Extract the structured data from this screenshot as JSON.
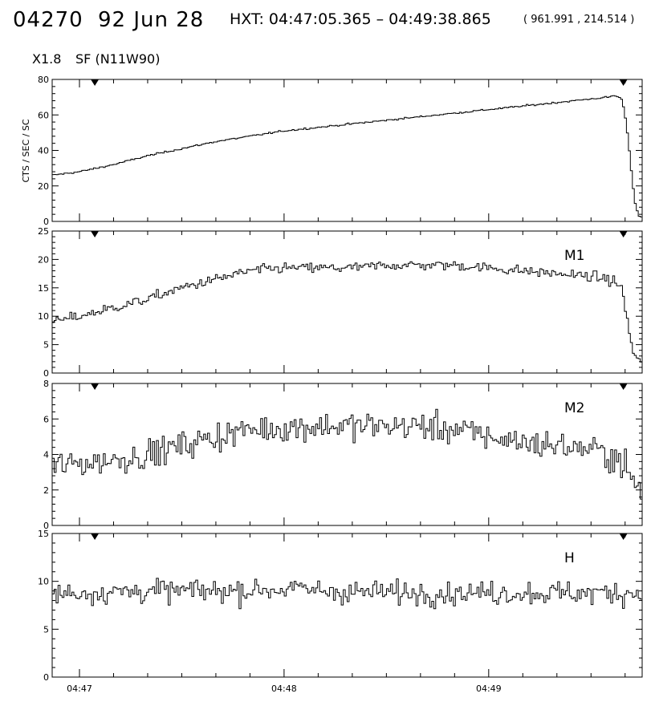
{
  "header": {
    "event_id": "04270",
    "date": "92 Jun 28",
    "hxt_range": "HXT: 04:47:05.365 – 04:49:38.865",
    "coords": "( 961.991 , 214.514 )",
    "flare_class": "X1.8",
    "location": "SF (N11W90)"
  },
  "chart_data": {
    "type": "line",
    "title": "",
    "xlabel": "",
    "ylabel": "CTS / SEC / SC",
    "x_ticks": [
      "04:47",
      "04:48",
      "04:49"
    ],
    "x_range_seconds_after_0447": [
      -8,
      165
    ],
    "markers_seconds_after_0447": [
      4.5,
      159.5
    ],
    "panels": [
      {
        "name": "",
        "ylim": [
          0,
          80
        ],
        "yticks": [
          "0",
          "20",
          "40",
          "60",
          "80"
        ],
        "series": [
          {
            "x": [
              -8,
              0,
              10,
              20,
              30,
              40,
              50,
              60,
              70,
              80,
              90,
              100,
              110,
              120,
              130,
              140,
              150,
              155,
              157,
              159,
              160,
              161,
              162,
              163,
              164,
              165
            ],
            "values": [
              26,
              28,
              32,
              37,
              41,
              45,
              48,
              51,
              53,
              55,
              57,
              59,
              61,
              63,
              65,
              67,
              69,
              70,
              71,
              69,
              60,
              45,
              25,
              10,
              3,
              2
            ]
          }
        ]
      },
      {
        "name": "M1",
        "ylim": [
          0,
          25
        ],
        "yticks": [
          "0",
          "5",
          "10",
          "15",
          "20",
          "25"
        ],
        "series": [
          {
            "x": [
              -8,
              0,
              10,
              20,
              30,
              40,
              50,
              60,
              70,
              80,
              90,
              100,
              110,
              120,
              130,
              140,
              150,
              155,
              157,
              159,
              160,
              161,
              162,
              163,
              164,
              165
            ],
            "values": [
              9,
              10,
              11.5,
              13,
              15,
              16.5,
              18,
              18.5,
              18.5,
              18.5,
              19,
              19,
              19,
              18.5,
              18,
              17.5,
              17,
              16.5,
              16,
              15,
              12,
              8,
              4,
              3,
              2.5,
              2
            ]
          }
        ]
      },
      {
        "name": "M2",
        "ylim": [
          0,
          8
        ],
        "yticks": [
          "0",
          "2",
          "4",
          "6",
          "8"
        ],
        "series": [
          {
            "x": [
              -8,
              0,
              10,
              20,
              30,
              40,
              50,
              60,
              70,
              80,
              90,
              100,
              110,
              120,
              130,
              140,
              150,
              155,
              157,
              159,
              160,
              161,
              162,
              163,
              164,
              165
            ],
            "values": [
              3.3,
              3.5,
              3.7,
              4.0,
              4.5,
              5.0,
              5.4,
              5.5,
              5.6,
              5.6,
              5.6,
              5.6,
              5.4,
              5.0,
              4.7,
              4.5,
              4.3,
              4.0,
              3.8,
              3.6,
              3.4,
              3.0,
              2.5,
              2.2,
              2.0,
              2.0
            ]
          }
        ]
      },
      {
        "name": "H",
        "ylim": [
          0,
          15
        ],
        "yticks": [
          "0",
          "5",
          "10",
          "15"
        ],
        "series": [
          {
            "x": [
              -8,
              0,
              20,
              40,
              60,
              80,
              100,
              120,
              140,
              160,
              165
            ],
            "values": [
              8.7,
              8.8,
              9.0,
              9.0,
              9.2,
              8.9,
              8.8,
              8.8,
              8.8,
              8.8,
              8.8
            ]
          }
        ]
      }
    ]
  }
}
